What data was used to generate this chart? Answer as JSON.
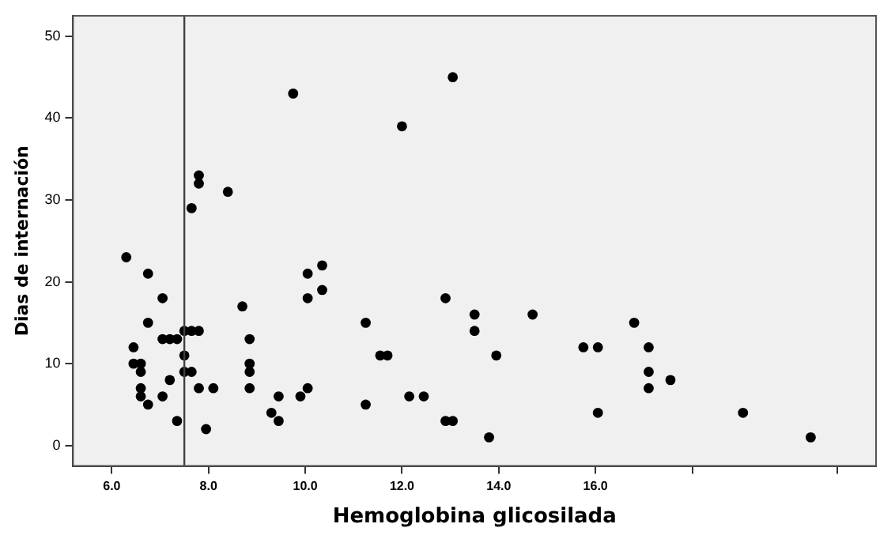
{
  "chart_data": {
    "type": "scatter",
    "xlabel": "Hemoglobina glicosilada",
    "ylabel": "Dias de internación",
    "xlim": [
      5.2,
      21.8
    ],
    "ylim": [
      -2.5,
      52.5
    ],
    "xticks": [
      {
        "value": 6,
        "label": "6.0"
      },
      {
        "value": 8,
        "label": "8.0"
      },
      {
        "value": 10,
        "label": "10.0"
      },
      {
        "value": 12,
        "label": "12.0"
      },
      {
        "value": 14,
        "label": "14.0"
      },
      {
        "value": 16,
        "label": "16.0"
      },
      {
        "value": 18,
        "label": null
      },
      {
        "value": 21,
        "label": null
      }
    ],
    "yticks": [
      0,
      10,
      20,
      30,
      40,
      50
    ],
    "grid": false,
    "legend": false,
    "marker": "circle",
    "ref_lines": [
      {
        "axis": "x",
        "value": 7.5,
        "label": null,
        "color": "#404040"
      }
    ],
    "series": [
      {
        "color": "#000000",
        "x": [
          9.75,
          7.8,
          7.8,
          8.4,
          7.65,
          6.3,
          6.75,
          10.05,
          10.35,
          7.05,
          10.05,
          10.35,
          8.7,
          6.75,
          7.05,
          7.2,
          7.35,
          7.5,
          7.65,
          7.8,
          8.85,
          6.45,
          7.5,
          6.45,
          6.6,
          8.85,
          6.6,
          7.5,
          7.65,
          8.85,
          7.2,
          6.6,
          7.8,
          8.1,
          8.85,
          10.05,
          6.6,
          7.05,
          9.45,
          9.9,
          6.75,
          9.3,
          7.35,
          9.45,
          7.95,
          13.05,
          12.0,
          12.9,
          13.5,
          14.7,
          11.25,
          13.5,
          11.55,
          11.7,
          13.95,
          15.75,
          16.05,
          11.25,
          12.15,
          12.45,
          12.9,
          13.05,
          13.8,
          16.05,
          16.8,
          17.1,
          17.1,
          17.55,
          17.1,
          19.05,
          20.45
        ],
        "values": [
          43,
          33,
          32,
          31,
          29,
          23,
          21,
          21,
          22,
          18,
          18,
          19,
          17,
          15,
          13,
          13,
          13,
          14,
          14,
          14,
          13,
          12,
          11,
          10,
          10,
          10,
          9,
          9,
          9,
          9,
          8,
          7,
          7,
          7,
          7,
          7,
          6,
          6,
          6,
          6,
          5,
          4,
          3,
          3,
          2,
          45,
          39,
          18,
          16,
          16,
          15,
          14,
          11,
          11,
          11,
          12,
          12,
          5,
          6,
          6,
          3,
          3,
          1,
          4,
          15,
          12,
          9,
          8,
          7,
          4,
          1
        ]
      }
    ]
  }
}
